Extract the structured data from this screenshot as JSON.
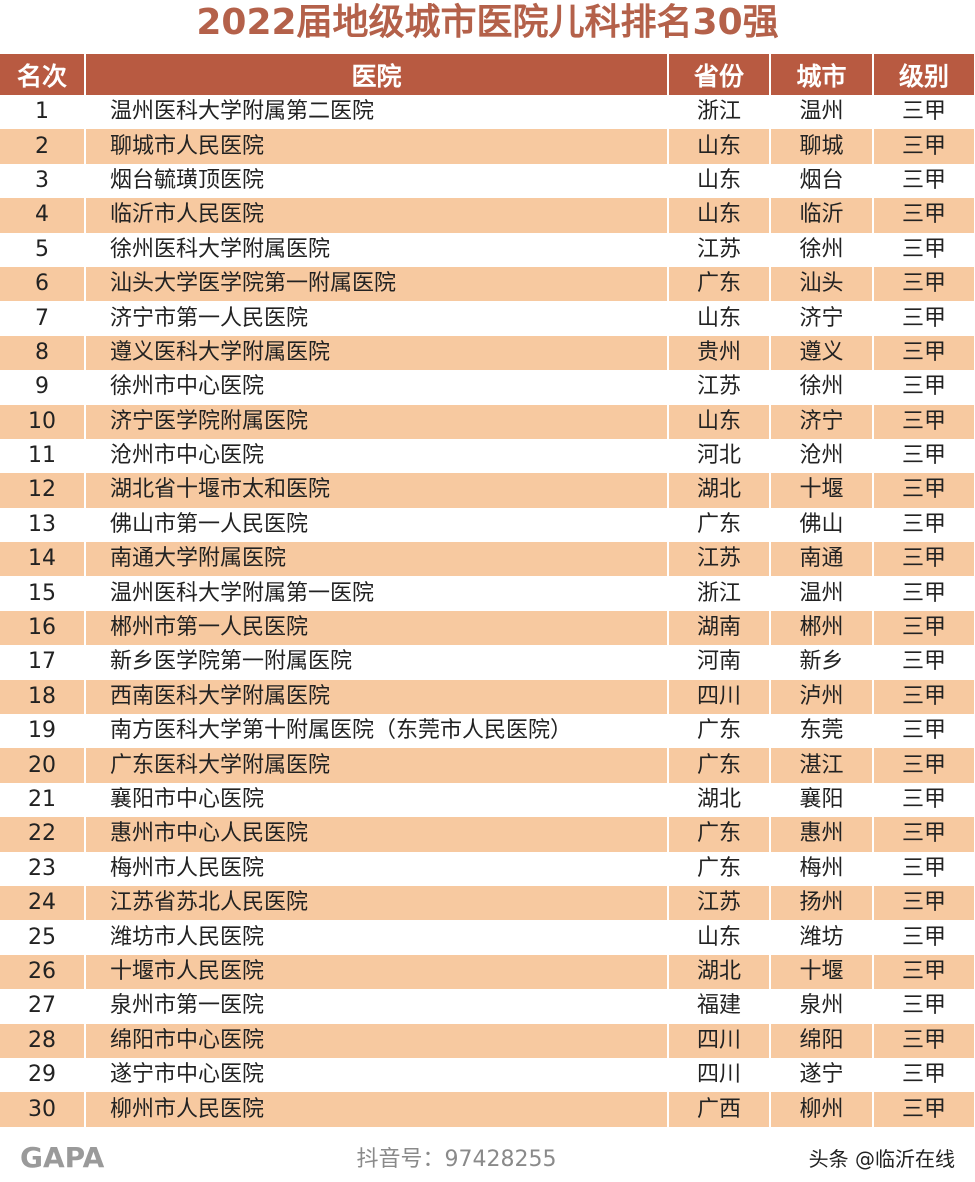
{
  "title": "2022届地级城市医院儿科排名30强",
  "headers": {
    "rank": "名次",
    "hospital": "医院",
    "province": "省份",
    "city": "城市",
    "level": "级别"
  },
  "colors": {
    "header_bg": "#b85a41",
    "title": "#b4614a",
    "alt_row": "#f7c9a0"
  },
  "rows": [
    {
      "rank": "1",
      "hospital": "温州医科大学附属第二医院",
      "province": "浙江",
      "city": "温州",
      "level": "三甲"
    },
    {
      "rank": "2",
      "hospital": "聊城市人民医院",
      "province": "山东",
      "city": "聊城",
      "level": "三甲"
    },
    {
      "rank": "3",
      "hospital": "烟台毓璜顶医院",
      "province": "山东",
      "city": "烟台",
      "level": "三甲"
    },
    {
      "rank": "4",
      "hospital": "临沂市人民医院",
      "province": "山东",
      "city": "临沂",
      "level": "三甲"
    },
    {
      "rank": "5",
      "hospital": "徐州医科大学附属医院",
      "province": "江苏",
      "city": "徐州",
      "level": "三甲"
    },
    {
      "rank": "6",
      "hospital": "汕头大学医学院第一附属医院",
      "province": "广东",
      "city": "汕头",
      "level": "三甲"
    },
    {
      "rank": "7",
      "hospital": "济宁市第一人民医院",
      "province": "山东",
      "city": "济宁",
      "level": "三甲"
    },
    {
      "rank": "8",
      "hospital": "遵义医科大学附属医院",
      "province": "贵州",
      "city": "遵义",
      "level": "三甲"
    },
    {
      "rank": "9",
      "hospital": "徐州市中心医院",
      "province": "江苏",
      "city": "徐州",
      "level": "三甲"
    },
    {
      "rank": "10",
      "hospital": "济宁医学院附属医院",
      "province": "山东",
      "city": "济宁",
      "level": "三甲"
    },
    {
      "rank": "11",
      "hospital": "沧州市中心医院",
      "province": "河北",
      "city": "沧州",
      "level": "三甲"
    },
    {
      "rank": "12",
      "hospital": "湖北省十堰市太和医院",
      "province": "湖北",
      "city": "十堰",
      "level": "三甲"
    },
    {
      "rank": "13",
      "hospital": "佛山市第一人民医院",
      "province": "广东",
      "city": "佛山",
      "level": "三甲"
    },
    {
      "rank": "14",
      "hospital": "南通大学附属医院",
      "province": "江苏",
      "city": "南通",
      "level": "三甲"
    },
    {
      "rank": "15",
      "hospital": "温州医科大学附属第一医院",
      "province": "浙江",
      "city": "温州",
      "level": "三甲"
    },
    {
      "rank": "16",
      "hospital": "郴州市第一人民医院",
      "province": "湖南",
      "city": "郴州",
      "level": "三甲"
    },
    {
      "rank": "17",
      "hospital": "新乡医学院第一附属医院",
      "province": "河南",
      "city": "新乡",
      "level": "三甲"
    },
    {
      "rank": "18",
      "hospital": "西南医科大学附属医院",
      "province": "四川",
      "city": "泸州",
      "level": "三甲"
    },
    {
      "rank": "19",
      "hospital": "南方医科大学第十附属医院（东莞市人民医院）",
      "province": "广东",
      "city": "东莞",
      "level": "三甲"
    },
    {
      "rank": "20",
      "hospital": "广东医科大学附属医院",
      "province": "广东",
      "city": "湛江",
      "level": "三甲"
    },
    {
      "rank": "21",
      "hospital": "襄阳市中心医院",
      "province": "湖北",
      "city": "襄阳",
      "level": "三甲"
    },
    {
      "rank": "22",
      "hospital": "惠州市中心人民医院",
      "province": "广东",
      "city": "惠州",
      "level": "三甲"
    },
    {
      "rank": "23",
      "hospital": "梅州市人民医院",
      "province": "广东",
      "city": "梅州",
      "level": "三甲"
    },
    {
      "rank": "24",
      "hospital": "江苏省苏北人民医院",
      "province": "江苏",
      "city": "扬州",
      "level": "三甲"
    },
    {
      "rank": "25",
      "hospital": "潍坊市人民医院",
      "province": "山东",
      "city": "潍坊",
      "level": "三甲"
    },
    {
      "rank": "26",
      "hospital": "十堰市人民医院",
      "province": "湖北",
      "city": "十堰",
      "level": "三甲"
    },
    {
      "rank": "27",
      "hospital": "泉州市第一医院",
      "province": "福建",
      "city": "泉州",
      "level": "三甲"
    },
    {
      "rank": "28",
      "hospital": "绵阳市中心医院",
      "province": "四川",
      "city": "绵阳",
      "level": "三甲"
    },
    {
      "rank": "29",
      "hospital": "遂宁市中心医院",
      "province": "四川",
      "city": "遂宁",
      "level": "三甲"
    },
    {
      "rank": "30",
      "hospital": "柳州市人民医院",
      "province": "广西",
      "city": "柳州",
      "level": "三甲"
    }
  ],
  "watermarks": {
    "brand": "GAPA",
    "douyin": "抖音号：97428255",
    "toutiao": "头条 @临沂在线"
  }
}
